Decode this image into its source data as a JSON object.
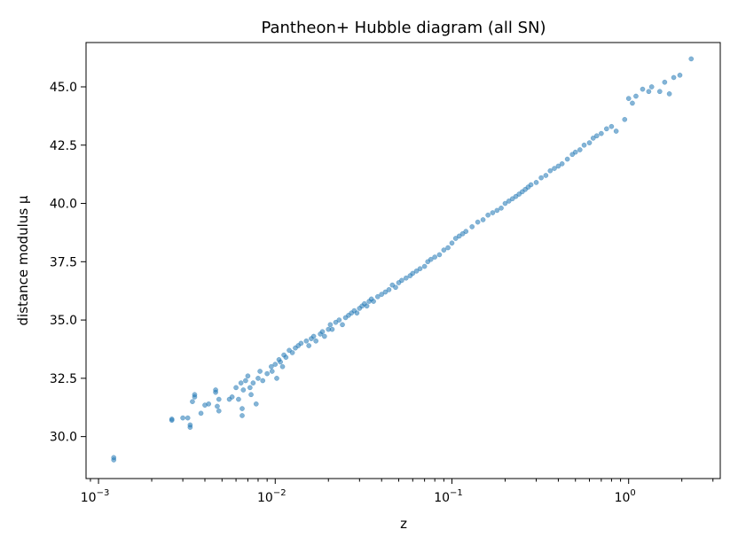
{
  "chart_data": {
    "type": "scatter",
    "title": "Pantheon+ Hubble diagram (all SN)",
    "xlabel": "z",
    "ylabel": "distance modulus μ",
    "x_scale": "log",
    "xlim": [
      0.00085,
      3.3
    ],
    "ylim": [
      28.2,
      46.9
    ],
    "grid": false,
    "legend": "none",
    "marker_color": "#1f77b4",
    "x_ticks": [
      {
        "value": 0.001,
        "base": "10",
        "exp": "−3"
      },
      {
        "value": 0.01,
        "base": "10",
        "exp": "−2"
      },
      {
        "value": 0.1,
        "base": "10",
        "exp": "−1"
      },
      {
        "value": 1,
        "base": "10",
        "exp": "0"
      }
    ],
    "y_ticks": [
      "30.0",
      "32.5",
      "35.0",
      "37.5",
      "40.0",
      "42.5",
      "45.0"
    ],
    "points": [
      [
        0.00122,
        29.0
      ],
      [
        0.00122,
        29.1
      ],
      [
        0.0026,
        30.75
      ],
      [
        0.0026,
        30.7
      ],
      [
        0.003,
        30.8
      ],
      [
        0.0032,
        30.8
      ],
      [
        0.0033,
        30.5
      ],
      [
        0.0033,
        30.4
      ],
      [
        0.0034,
        31.5
      ],
      [
        0.0035,
        31.7
      ],
      [
        0.0035,
        31.8
      ],
      [
        0.0038,
        31.0
      ],
      [
        0.004,
        31.35
      ],
      [
        0.0042,
        31.4
      ],
      [
        0.0046,
        32.0
      ],
      [
        0.0046,
        31.9
      ],
      [
        0.0047,
        31.3
      ],
      [
        0.0048,
        31.6
      ],
      [
        0.0048,
        31.1
      ],
      [
        0.0055,
        31.6
      ],
      [
        0.0057,
        31.7
      ],
      [
        0.006,
        32.1
      ],
      [
        0.0062,
        31.6
      ],
      [
        0.0064,
        32.3
      ],
      [
        0.0065,
        30.9
      ],
      [
        0.0065,
        31.2
      ],
      [
        0.0066,
        32.0
      ],
      [
        0.0068,
        32.4
      ],
      [
        0.007,
        32.6
      ],
      [
        0.0072,
        32.1
      ],
      [
        0.0073,
        31.8
      ],
      [
        0.0075,
        32.3
      ],
      [
        0.0078,
        31.4
      ],
      [
        0.008,
        32.5
      ],
      [
        0.0082,
        32.8
      ],
      [
        0.0085,
        32.4
      ],
      [
        0.009,
        32.7
      ],
      [
        0.0095,
        33.0
      ],
      [
        0.0096,
        32.8
      ],
      [
        0.01,
        33.1
      ],
      [
        0.0102,
        32.5
      ],
      [
        0.0105,
        33.3
      ],
      [
        0.0107,
        33.2
      ],
      [
        0.011,
        33.0
      ],
      [
        0.0112,
        33.5
      ],
      [
        0.0115,
        33.4
      ],
      [
        0.012,
        33.7
      ],
      [
        0.0125,
        33.6
      ],
      [
        0.013,
        33.8
      ],
      [
        0.0135,
        33.9
      ],
      [
        0.014,
        34.0
      ],
      [
        0.015,
        34.1
      ],
      [
        0.0155,
        33.9
      ],
      [
        0.016,
        34.2
      ],
      [
        0.0165,
        34.3
      ],
      [
        0.017,
        34.1
      ],
      [
        0.018,
        34.4
      ],
      [
        0.0185,
        34.5
      ],
      [
        0.019,
        34.3
      ],
      [
        0.02,
        34.6
      ],
      [
        0.0205,
        34.8
      ],
      [
        0.021,
        34.6
      ],
      [
        0.022,
        34.9
      ],
      [
        0.023,
        35.0
      ],
      [
        0.024,
        34.8
      ],
      [
        0.025,
        35.1
      ],
      [
        0.026,
        35.2
      ],
      [
        0.027,
        35.3
      ],
      [
        0.028,
        35.4
      ],
      [
        0.029,
        35.3
      ],
      [
        0.03,
        35.5
      ],
      [
        0.031,
        35.6
      ],
      [
        0.032,
        35.7
      ],
      [
        0.033,
        35.6
      ],
      [
        0.034,
        35.8
      ],
      [
        0.035,
        35.9
      ],
      [
        0.036,
        35.8
      ],
      [
        0.038,
        36.0
      ],
      [
        0.04,
        36.1
      ],
      [
        0.042,
        36.2
      ],
      [
        0.044,
        36.3
      ],
      [
        0.046,
        36.5
      ],
      [
        0.048,
        36.4
      ],
      [
        0.05,
        36.6
      ],
      [
        0.052,
        36.7
      ],
      [
        0.055,
        36.8
      ],
      [
        0.058,
        36.9
      ],
      [
        0.06,
        37.0
      ],
      [
        0.063,
        37.1
      ],
      [
        0.066,
        37.2
      ],
      [
        0.07,
        37.3
      ],
      [
        0.073,
        37.5
      ],
      [
        0.076,
        37.6
      ],
      [
        0.08,
        37.7
      ],
      [
        0.085,
        37.8
      ],
      [
        0.09,
        38.0
      ],
      [
        0.095,
        38.1
      ],
      [
        0.1,
        38.3
      ],
      [
        0.105,
        38.5
      ],
      [
        0.11,
        38.6
      ],
      [
        0.115,
        38.7
      ],
      [
        0.12,
        38.8
      ],
      [
        0.13,
        39.0
      ],
      [
        0.14,
        39.2
      ],
      [
        0.15,
        39.3
      ],
      [
        0.16,
        39.5
      ],
      [
        0.17,
        39.6
      ],
      [
        0.18,
        39.7
      ],
      [
        0.19,
        39.8
      ],
      [
        0.2,
        40.0
      ],
      [
        0.21,
        40.1
      ],
      [
        0.22,
        40.2
      ],
      [
        0.23,
        40.3
      ],
      [
        0.24,
        40.4
      ],
      [
        0.25,
        40.5
      ],
      [
        0.26,
        40.6
      ],
      [
        0.27,
        40.7
      ],
      [
        0.28,
        40.8
      ],
      [
        0.3,
        40.9
      ],
      [
        0.32,
        41.1
      ],
      [
        0.34,
        41.2
      ],
      [
        0.36,
        41.4
      ],
      [
        0.38,
        41.5
      ],
      [
        0.4,
        41.6
      ],
      [
        0.42,
        41.7
      ],
      [
        0.45,
        41.9
      ],
      [
        0.48,
        42.1
      ],
      [
        0.5,
        42.2
      ],
      [
        0.53,
        42.3
      ],
      [
        0.56,
        42.5
      ],
      [
        0.6,
        42.6
      ],
      [
        0.63,
        42.8
      ],
      [
        0.66,
        42.9
      ],
      [
        0.7,
        43.0
      ],
      [
        0.75,
        43.2
      ],
      [
        0.8,
        43.3
      ],
      [
        0.85,
        43.1
      ],
      [
        0.95,
        43.6
      ],
      [
        1.0,
        44.5
      ],
      [
        1.05,
        44.3
      ],
      [
        1.1,
        44.6
      ],
      [
        1.2,
        44.9
      ],
      [
        1.3,
        44.8
      ],
      [
        1.35,
        45.0
      ],
      [
        1.5,
        44.8
      ],
      [
        1.6,
        45.2
      ],
      [
        1.7,
        44.7
      ],
      [
        1.8,
        45.4
      ],
      [
        1.95,
        45.5
      ],
      [
        2.26,
        46.2
      ]
    ]
  }
}
